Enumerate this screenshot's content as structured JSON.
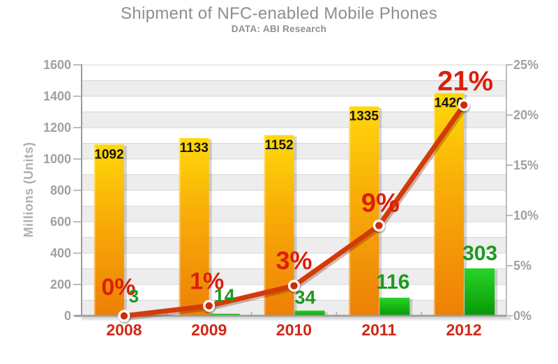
{
  "header": {
    "title": "Shipment of NFC-enabled Mobile Phones",
    "subtitle": "DATA: ABI Research"
  },
  "chart_data": {
    "type": "bar",
    "subtype": "combo-bar-line",
    "title": "Shipment of NFC-enabled Mobile Phones",
    "subtitle": "DATA: ABI Research",
    "categories": [
      "2008",
      "2009",
      "2010",
      "2011",
      "2012"
    ],
    "series": [
      {
        "name": "orange-bar-series",
        "type": "bar",
        "axis": "left",
        "values": [
          1092,
          1133,
          1152,
          1335,
          1420
        ],
        "color_top": "#ffd80a",
        "color_bottom": "#ee7f07",
        "value_label_color": "#141414"
      },
      {
        "name": "green-bar-series",
        "type": "bar",
        "axis": "left",
        "values": [
          3,
          14,
          34,
          116,
          303
        ],
        "color_top": "#27d427",
        "color_bottom": "#089808",
        "value_label_color": "#1c9a1c"
      },
      {
        "name": "red-line-series",
        "type": "line",
        "axis": "right",
        "values": [
          0,
          1,
          3,
          9,
          21
        ],
        "labels": [
          "0%",
          "1%",
          "3%",
          "9%",
          "21%"
        ],
        "line_color": "#d43a08",
        "marker_color": "#cd2c04",
        "label_color": "#dd1f08"
      }
    ],
    "ylabel_left": "Millions (Units)",
    "ylim_left": [
      0,
      1600
    ],
    "yticks_left": [
      0,
      200,
      400,
      600,
      800,
      1000,
      1200,
      1400,
      1600
    ],
    "ylim_right": [
      0,
      25
    ],
    "yticks_right": [
      "0%",
      "5%",
      "10%",
      "15%",
      "20%",
      "25%"
    ],
    "xtick_color": "#d02818",
    "axis_text_color": "#a0a0a0",
    "grid": "horizontal lines every 100 units with alternating white / light-gray bands",
    "legend": "none"
  }
}
